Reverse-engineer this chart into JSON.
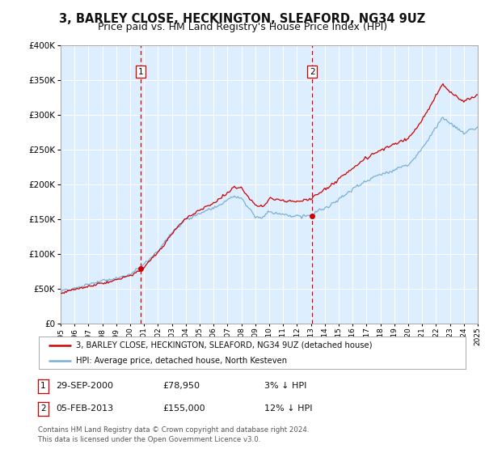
{
  "title": "3, BARLEY CLOSE, HECKINGTON, SLEAFORD, NG34 9UZ",
  "subtitle": "Price paid vs. HM Land Registry's House Price Index (HPI)",
  "legend_line1": "3, BARLEY CLOSE, HECKINGTON, SLEAFORD, NG34 9UZ (detached house)",
  "legend_line2": "HPI: Average price, detached house, North Kesteven",
  "annotation1_date": "29-SEP-2000",
  "annotation1_price": "£78,950",
  "annotation1_hpi": "3% ↓ HPI",
  "annotation2_date": "05-FEB-2013",
  "annotation2_price": "£155,000",
  "annotation2_hpi": "12% ↓ HPI",
  "footer": "Contains HM Land Registry data © Crown copyright and database right 2024.\nThis data is licensed under the Open Government Licence v3.0.",
  "sale1_year": 2000.75,
  "sale1_value": 78950,
  "sale2_year": 2013.09,
  "sale2_value": 155000,
  "hpi_color": "#7ab0d4",
  "price_color": "#cc0000",
  "dashed_line_color": "#cc0000",
  "background_color": "#ddeeff",
  "ylim": [
    0,
    400000
  ],
  "xlim_start": 1995,
  "xlim_end": 2025,
  "grid_color": "#ffffff",
  "title_fontsize": 10.5,
  "subtitle_fontsize": 9
}
